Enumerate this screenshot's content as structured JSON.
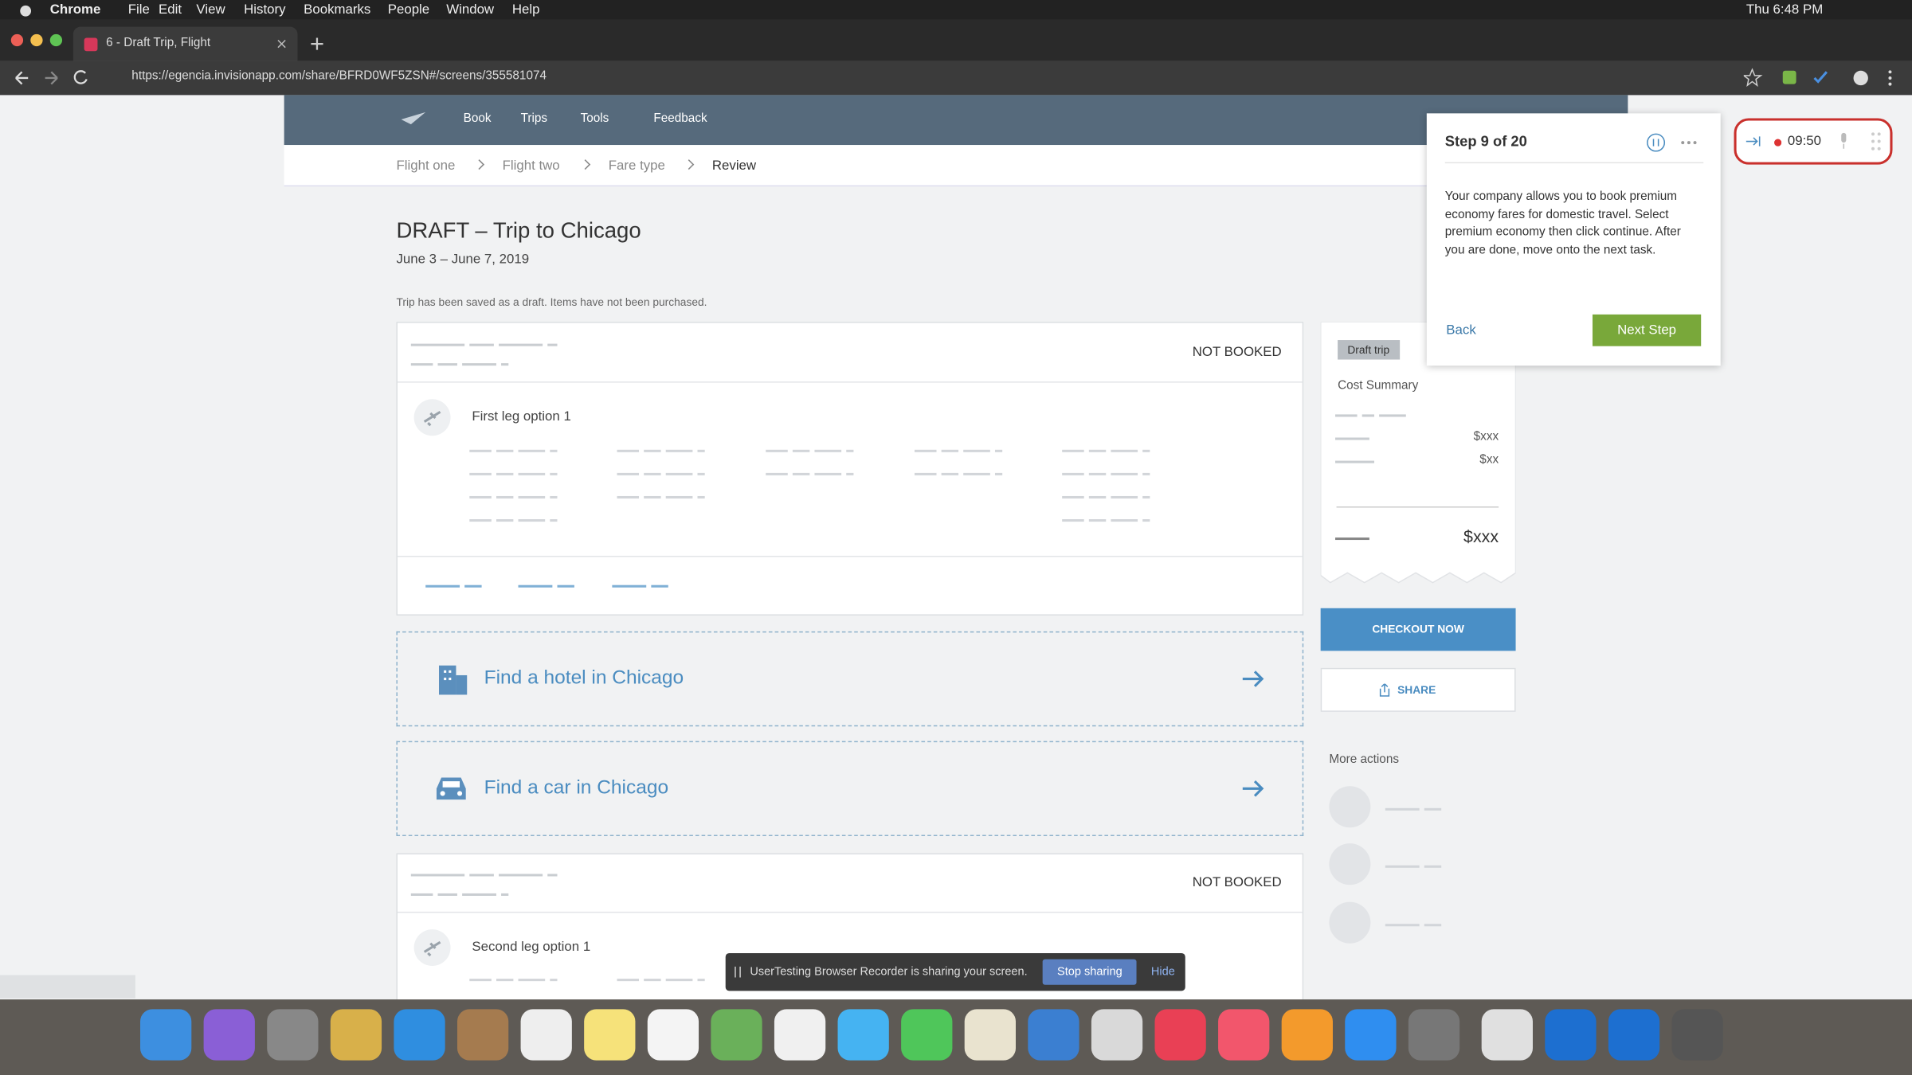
{
  "menubar": {
    "app": "Chrome",
    "menus": [
      "File",
      "Edit",
      "View",
      "History",
      "Bookmarks",
      "People",
      "Window",
      "Help"
    ],
    "clock": "Thu 6:48 PM"
  },
  "browser": {
    "tab_title": "6 - Draft Trip, Flight",
    "url": "https://egencia.invisionapp.com/share/BFRD0WF5ZSN#/screens/355581074"
  },
  "nav": {
    "items": [
      "Book",
      "Trips",
      "Tools",
      "Feedback"
    ]
  },
  "breadcrumb": [
    "Flight one",
    "Flight two",
    "Fare type",
    "Review"
  ],
  "trip": {
    "title": "DRAFT – Trip to Chicago",
    "dates": "June 3 – June 7, 2019",
    "note": "Trip has been saved as a draft. Items have not been purchased."
  },
  "cards": [
    {
      "status": "NOT BOOKED",
      "leg": "First leg option 1"
    },
    {
      "status": "NOT BOOKED",
      "leg": "Second leg option 1"
    }
  ],
  "links": [
    "Find a hotel in Chicago",
    "Find a car in Chicago"
  ],
  "sidebar": {
    "tag": "Draft trip",
    "heading": "Cost Summary",
    "lines": [
      "$xxx",
      "$xx"
    ],
    "total": "$xxx",
    "checkout": "CHECKOUT NOW",
    "share": "SHARE",
    "more": "More actions"
  },
  "step_panel": {
    "title": "Step 9 of 20",
    "body": "Your company allows you to book premium economy fares for domestic travel. Select premium economy then click continue. After you are done, move onto the next task.",
    "back": "Back",
    "next": "Next Step"
  },
  "recorder": {
    "time": "09:50"
  },
  "share_bar": {
    "message": "UserTesting Browser Recorder is sharing your screen.",
    "stop": "Stop sharing",
    "hide": "Hide"
  }
}
